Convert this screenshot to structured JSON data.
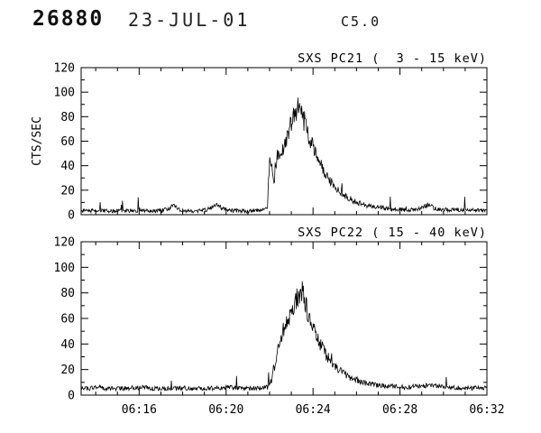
{
  "header": {
    "event_number": "26880",
    "date": "23-JUL-01",
    "flare_class": "C5.0"
  },
  "y_axis_label": "CTS/SEC",
  "chart_data": [
    {
      "type": "line",
      "title": "SXS PC21 (  3 - 15 keV)",
      "ylabel": "CTS/SEC",
      "xlabel": "",
      "ylim": [
        0,
        120
      ],
      "ytick_step": 20,
      "yminor_step": 10,
      "ytick_labels": [
        "0",
        "20",
        "40",
        "60",
        "80",
        "100",
        "120"
      ],
      "x_start_min": 13.33,
      "x_end_min": 32.0,
      "xminor_step": 1,
      "xticks": [
        {
          "min": 16,
          "label": "06:16"
        },
        {
          "min": 20,
          "label": "06:20"
        },
        {
          "min": 24,
          "label": "06:24"
        },
        {
          "min": 28,
          "label": "06:28"
        },
        {
          "min": 32,
          "label": "06:32"
        }
      ],
      "grid": "off",
      "legend": "none",
      "baseline_cts": 3,
      "peak_cts": 92,
      "peak_time": "06:23.5",
      "envelope": [
        [
          13.33,
          3
        ],
        [
          14,
          3.5
        ],
        [
          15,
          3
        ],
        [
          16,
          3.5
        ],
        [
          17,
          3
        ],
        [
          17.6,
          7
        ],
        [
          18,
          3
        ],
        [
          19,
          3.5
        ],
        [
          19.6,
          8
        ],
        [
          20,
          3.5
        ],
        [
          21,
          3
        ],
        [
          21.7,
          4
        ],
        [
          21.9,
          5
        ],
        [
          22.0,
          45
        ],
        [
          22.1,
          38
        ],
        [
          22.2,
          24
        ],
        [
          22.35,
          52
        ],
        [
          22.5,
          45
        ],
        [
          22.7,
          58
        ],
        [
          22.9,
          70
        ],
        [
          23.1,
          80
        ],
        [
          23.3,
          90
        ],
        [
          23.45,
          87
        ],
        [
          23.6,
          76
        ],
        [
          23.8,
          64
        ],
        [
          24.0,
          56
        ],
        [
          24.25,
          46
        ],
        [
          24.5,
          36
        ],
        [
          24.8,
          27
        ],
        [
          25.1,
          21
        ],
        [
          25.5,
          15
        ],
        [
          26.0,
          10
        ],
        [
          26.5,
          7
        ],
        [
          27.0,
          6
        ],
        [
          27.5,
          5
        ],
        [
          28.0,
          4
        ],
        [
          28.7,
          4
        ],
        [
          29.3,
          8
        ],
        [
          29.6,
          5
        ],
        [
          30.2,
          4
        ],
        [
          31.0,
          4
        ],
        [
          32.0,
          3
        ]
      ]
    },
    {
      "type": "line",
      "title": "SXS PC22 ( 15 - 40 keV)",
      "ylabel": "",
      "xlabel": "",
      "ylim": [
        0,
        120
      ],
      "ytick_step": 20,
      "yminor_step": 10,
      "ytick_labels": [
        "0",
        "20",
        "40",
        "60",
        "80",
        "100",
        "120"
      ],
      "x_start_min": 13.33,
      "x_end_min": 32.0,
      "xminor_step": 1,
      "xticks": [
        {
          "min": 16,
          "label": "06:16"
        },
        {
          "min": 20,
          "label": "06:20"
        },
        {
          "min": 24,
          "label": "06:24"
        },
        {
          "min": 28,
          "label": "06:28"
        },
        {
          "min": 32,
          "label": "06:32"
        }
      ],
      "grid": "off",
      "legend": "none",
      "baseline_cts": 5,
      "peak_cts": 84,
      "peak_time": "06:23.5",
      "envelope": [
        [
          13.33,
          5
        ],
        [
          14,
          6
        ],
        [
          15,
          5
        ],
        [
          16,
          6
        ],
        [
          17,
          5
        ],
        [
          18,
          5.5
        ],
        [
          19,
          5
        ],
        [
          20,
          6
        ],
        [
          21,
          5
        ],
        [
          21.9,
          6
        ],
        [
          22.1,
          12
        ],
        [
          22.3,
          28
        ],
        [
          22.5,
          44
        ],
        [
          22.7,
          54
        ],
        [
          22.9,
          62
        ],
        [
          23.1,
          70
        ],
        [
          23.3,
          78
        ],
        [
          23.45,
          83
        ],
        [
          23.6,
          74
        ],
        [
          23.8,
          62
        ],
        [
          24.0,
          52
        ],
        [
          24.3,
          41
        ],
        [
          24.6,
          31
        ],
        [
          25.0,
          23
        ],
        [
          25.4,
          17
        ],
        [
          25.8,
          13
        ],
        [
          26.3,
          10
        ],
        [
          26.8,
          8
        ],
        [
          27.5,
          7
        ],
        [
          28.2,
          6
        ],
        [
          29.0,
          7
        ],
        [
          29.6,
          8
        ],
        [
          30.2,
          6
        ],
        [
          31.0,
          5.5
        ],
        [
          32.0,
          6
        ]
      ]
    }
  ],
  "colors": {
    "trace": "#000000",
    "axis": "#000000",
    "background": "#ffffff"
  }
}
